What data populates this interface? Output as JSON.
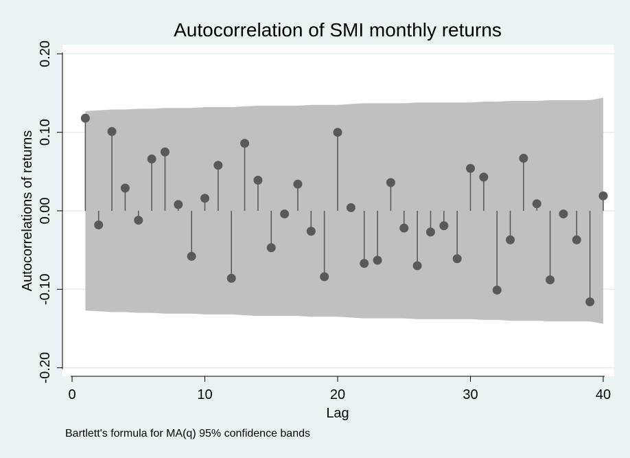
{
  "chart_data": {
    "type": "stem",
    "title": "Autocorrelation of SMI monthly returns",
    "xlabel": "Lag",
    "ylabel": "Autocorrelations of returns",
    "note": "Bartlett's formula for MA(q) 95% confidence bands",
    "xlim": [
      0,
      40
    ],
    "ylim": [
      -0.2,
      0.2
    ],
    "xticks": [
      "0",
      "10",
      "20",
      "30",
      "40"
    ],
    "xtick_values": [
      0,
      10,
      20,
      30,
      40
    ],
    "yticks": [
      "-0.20",
      "-0.10",
      "0.00",
      "0.10",
      "0.20"
    ],
    "ytick_values": [
      -0.2,
      -0.1,
      0.0,
      0.1,
      0.2
    ],
    "grid": true,
    "lags": [
      1,
      2,
      3,
      4,
      5,
      6,
      7,
      8,
      9,
      10,
      11,
      12,
      13,
      14,
      15,
      16,
      17,
      18,
      19,
      20,
      21,
      22,
      23,
      24,
      25,
      26,
      27,
      28,
      29,
      30,
      31,
      32,
      33,
      34,
      35,
      36,
      37,
      38,
      39,
      40
    ],
    "values": [
      0.118,
      -0.018,
      0.101,
      0.029,
      -0.012,
      0.066,
      0.075,
      0.008,
      -0.058,
      0.016,
      0.058,
      -0.086,
      0.086,
      0.039,
      -0.047,
      -0.004,
      0.034,
      -0.026,
      -0.084,
      0.1,
      0.004,
      -0.067,
      -0.063,
      0.036,
      -0.022,
      -0.07,
      -0.027,
      -0.019,
      -0.061,
      0.054,
      0.043,
      -0.101,
      -0.037,
      0.067,
      0.009,
      -0.088,
      -0.004,
      -0.037,
      -0.116,
      0.019
    ],
    "confidence_band": [
      0.127,
      0.128,
      0.129,
      0.129,
      0.13,
      0.13,
      0.131,
      0.131,
      0.131,
      0.132,
      0.132,
      0.132,
      0.133,
      0.134,
      0.134,
      0.134,
      0.134,
      0.135,
      0.135,
      0.135,
      0.136,
      0.137,
      0.137,
      0.137,
      0.137,
      0.138,
      0.138,
      0.138,
      0.138,
      0.138,
      0.139,
      0.139,
      0.14,
      0.14,
      0.14,
      0.141,
      0.141,
      0.141,
      0.141,
      0.144
    ],
    "colors": {
      "background": "#eaf2f3",
      "plot_region": "#ffffff",
      "band": "#c0c0c0",
      "marker": "#595959",
      "stem": "#595959",
      "grid": "#e6ecee"
    }
  }
}
